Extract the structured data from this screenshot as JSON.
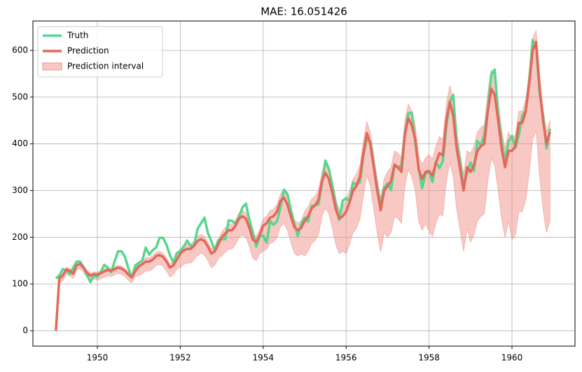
{
  "chart_data": {
    "type": "line",
    "title": "MAE: 16.051426",
    "x": [
      1949.0,
      1949.083,
      1949.167,
      1949.25,
      1949.333,
      1949.417,
      1949.5,
      1949.583,
      1949.667,
      1949.75,
      1949.833,
      1949.917,
      1950.0,
      1950.083,
      1950.167,
      1950.25,
      1950.333,
      1950.417,
      1950.5,
      1950.583,
      1950.667,
      1950.75,
      1950.833,
      1950.917,
      1951.0,
      1951.083,
      1951.167,
      1951.25,
      1951.333,
      1951.417,
      1951.5,
      1951.583,
      1951.667,
      1951.75,
      1951.833,
      1951.917,
      1952.0,
      1952.083,
      1952.167,
      1952.25,
      1952.333,
      1952.417,
      1952.5,
      1952.583,
      1952.667,
      1952.75,
      1952.833,
      1952.917,
      1953.0,
      1953.083,
      1953.167,
      1953.25,
      1953.333,
      1953.417,
      1953.5,
      1953.583,
      1953.667,
      1953.75,
      1953.833,
      1953.917,
      1954.0,
      1954.083,
      1954.167,
      1954.25,
      1954.333,
      1954.417,
      1954.5,
      1954.583,
      1954.667,
      1954.75,
      1954.833,
      1954.917,
      1955.0,
      1955.083,
      1955.167,
      1955.25,
      1955.333,
      1955.417,
      1955.5,
      1955.583,
      1955.667,
      1955.75,
      1955.833,
      1955.917,
      1956.0,
      1956.083,
      1956.167,
      1956.25,
      1956.333,
      1956.417,
      1956.5,
      1956.583,
      1956.667,
      1956.75,
      1956.833,
      1956.917,
      1957.0,
      1957.083,
      1957.167,
      1957.25,
      1957.333,
      1957.417,
      1957.5,
      1957.583,
      1957.667,
      1957.75,
      1957.833,
      1957.917,
      1958.0,
      1958.083,
      1958.167,
      1958.25,
      1958.333,
      1958.417,
      1958.5,
      1958.583,
      1958.667,
      1958.75,
      1958.833,
      1958.917,
      1959.0,
      1959.083,
      1959.167,
      1959.25,
      1959.333,
      1959.417,
      1959.5,
      1959.583,
      1959.667,
      1959.75,
      1959.833,
      1959.917,
      1960.0,
      1960.083,
      1960.167,
      1960.25,
      1960.333,
      1960.417,
      1960.5,
      1960.583,
      1960.667,
      1960.75,
      1960.833,
      1960.917
    ],
    "series": [
      {
        "name": "Truth",
        "color": "#58d68d",
        "values": [
          112,
          118,
          132,
          129,
          121,
          135,
          148,
          148,
          136,
          119,
          104,
          118,
          115,
          126,
          141,
          135,
          125,
          149,
          170,
          170,
          158,
          133,
          114,
          140,
          145,
          150,
          178,
          163,
          172,
          178,
          199,
          199,
          184,
          162,
          146,
          166,
          171,
          180,
          193,
          181,
          183,
          218,
          230,
          242,
          209,
          191,
          172,
          194,
          196,
          196,
          236,
          235,
          229,
          243,
          264,
          272,
          237,
          211,
          180,
          201,
          204,
          188,
          235,
          227,
          234,
          264,
          302,
          293,
          259,
          229,
          203,
          229,
          242,
          233,
          267,
          269,
          270,
          315,
          364,
          347,
          312,
          274,
          237,
          278,
          284,
          277,
          317,
          313,
          318,
          374,
          413,
          405,
          355,
          306,
          271,
          306,
          315,
          301,
          356,
          348,
          355,
          422,
          465,
          467,
          404,
          347,
          305,
          336,
          340,
          318,
          362,
          348,
          363,
          435,
          491,
          505,
          404,
          359,
          310,
          337,
          360,
          342,
          406,
          396,
          420,
          472,
          548,
          559,
          463,
          407,
          362,
          405,
          417,
          391,
          419,
          461,
          472,
          535,
          622,
          606,
          508,
          461,
          390,
          432
        ]
      },
      {
        "name": "Prediction",
        "color": "#e4685a",
        "values": [
          0,
          112,
          118,
          131,
          128,
          122,
          140,
          143,
          135,
          124,
          118,
          121,
          120,
          123,
          127,
          130,
          128,
          132,
          135,
          133,
          128,
          120,
          114,
          128,
          138,
          142,
          148,
          148,
          152,
          160,
          162,
          158,
          148,
          135,
          140,
          152,
          165,
          172,
          175,
          175,
          182,
          192,
          196,
          192,
          180,
          165,
          170,
          185,
          200,
          208,
          215,
          215,
          225,
          240,
          245,
          240,
          220,
          195,
          190,
          205,
          225,
          230,
          242,
          245,
          255,
          278,
          285,
          270,
          245,
          222,
          215,
          220,
          235,
          245,
          262,
          268,
          280,
          320,
          338,
          325,
          295,
          260,
          240,
          245,
          255,
          275,
          300,
          310,
          330,
          380,
          423,
          400,
          350,
          300,
          258,
          300,
          310,
          320,
          355,
          350,
          340,
          420,
          455,
          440,
          410,
          345,
          325,
          340,
          342,
          332,
          360,
          380,
          375,
          450,
          490,
          460,
          390,
          345,
          300,
          350,
          340,
          355,
          385,
          395,
          400,
          470,
          518,
          505,
          450,
          390,
          350,
          385,
          385,
          395,
          445,
          445,
          470,
          530,
          600,
          618,
          520,
          450,
          400,
          425
        ]
      }
    ],
    "interval": {
      "name": "Prediction interval",
      "color": "#f1948a",
      "lower": [
        null,
        102,
        108,
        121,
        118,
        112,
        130,
        133,
        125,
        114,
        108,
        111,
        108,
        111,
        115,
        118,
        116,
        120,
        123,
        121,
        116,
        108,
        102,
        116,
        118,
        122,
        128,
        128,
        132,
        140,
        142,
        138,
        128,
        115,
        120,
        132,
        135,
        142,
        145,
        145,
        152,
        162,
        166,
        162,
        150,
        135,
        140,
        155,
        160,
        168,
        175,
        175,
        185,
        200,
        205,
        200,
        180,
        155,
        150,
        165,
        170,
        175,
        187,
        190,
        200,
        223,
        230,
        215,
        190,
        167,
        160,
        165,
        160,
        170,
        187,
        193,
        205,
        245,
        263,
        250,
        220,
        185,
        165,
        170,
        165,
        185,
        210,
        220,
        240,
        290,
        333,
        310,
        260,
        210,
        168,
        210,
        200,
        210,
        245,
        240,
        230,
        310,
        345,
        330,
        300,
        235,
        215,
        230,
        212,
        202,
        230,
        250,
        245,
        320,
        360,
        330,
        260,
        215,
        170,
        220,
        190,
        205,
        235,
        245,
        250,
        320,
        368,
        355,
        300,
        240,
        200,
        235,
        195,
        205,
        255,
        255,
        280,
        340,
        410,
        428,
        330,
        260,
        210,
        235
      ],
      "upper": [
        null,
        117,
        123,
        136,
        133,
        127,
        145,
        148,
        140,
        129,
        123,
        126,
        125,
        128,
        132,
        135,
        133,
        137,
        140,
        138,
        133,
        125,
        119,
        133,
        146,
        150,
        156,
        156,
        160,
        168,
        170,
        166,
        156,
        143,
        148,
        160,
        175,
        182,
        185,
        185,
        192,
        202,
        206,
        202,
        190,
        175,
        180,
        195,
        212,
        220,
        227,
        227,
        237,
        252,
        257,
        252,
        232,
        207,
        202,
        217,
        240,
        245,
        257,
        260,
        270,
        293,
        300,
        285,
        260,
        237,
        230,
        235,
        255,
        265,
        282,
        288,
        300,
        340,
        358,
        345,
        315,
        280,
        260,
        265,
        280,
        300,
        325,
        335,
        355,
        405,
        448,
        425,
        375,
        325,
        283,
        325,
        340,
        350,
        385,
        380,
        370,
        450,
        485,
        470,
        440,
        375,
        355,
        370,
        377,
        367,
        395,
        415,
        410,
        485,
        525,
        495,
        425,
        380,
        335,
        385,
        380,
        395,
        425,
        435,
        440,
        510,
        558,
        545,
        490,
        430,
        390,
        425,
        410,
        420,
        470,
        470,
        495,
        555,
        625,
        643,
        545,
        475,
        425,
        450
      ]
    },
    "xlim": [
      1948.446,
      1961.52
    ],
    "ylim": [
      -33,
      663
    ],
    "xticks": [
      1950,
      1952,
      1954,
      1956,
      1958,
      1960
    ],
    "yticks": [
      0,
      100,
      200,
      300,
      400,
      500,
      600
    ],
    "grid": true,
    "legend": "upper left"
  }
}
